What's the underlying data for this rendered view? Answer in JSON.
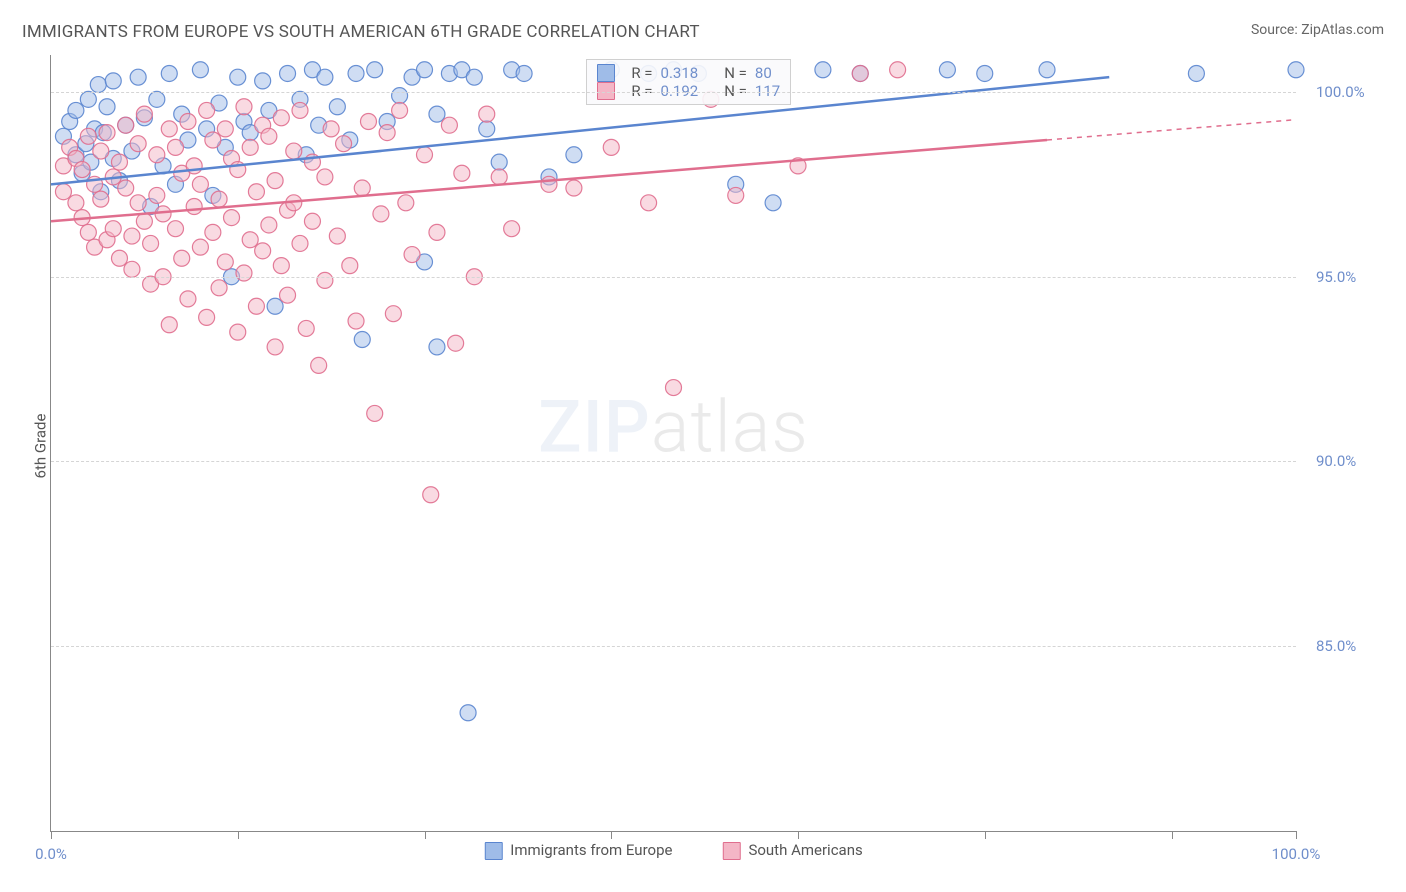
{
  "title": "IMMIGRANTS FROM EUROPE VS SOUTH AMERICAN 6TH GRADE CORRELATION CHART",
  "source_label": "Source: ",
  "source_name": "ZipAtlas.com",
  "ylabel": "6th Grade",
  "watermark_bold": "ZIP",
  "watermark_rest": "atlas",
  "chart": {
    "type": "scatter",
    "background_color": "#ffffff",
    "grid_color": "#d5d5d5",
    "axis_color": "#888888",
    "tick_label_color": "#6f8ecb",
    "xlim": [
      0,
      100
    ],
    "ylim": [
      80,
      101
    ],
    "xticks": [
      0,
      15,
      30,
      45,
      60,
      75,
      90,
      100
    ],
    "xtick_labels": {
      "0": "0.0%",
      "100": "100.0%"
    },
    "yticks": [
      85,
      90,
      95,
      100
    ],
    "ytick_labels": {
      "85": "85.0%",
      "90": "90.0%",
      "95": "95.0%",
      "100": "100.0%"
    },
    "marker_radius": 8,
    "marker_opacity": 0.5,
    "marker_stroke_opacity": 0.9,
    "line_width": 2.5,
    "legend": {
      "items": [
        {
          "label": "Immigrants from Europe",
          "fill": "#9fbce8",
          "stroke": "#5a85cf"
        },
        {
          "label": "South Americans",
          "fill": "#f4b6c6",
          "stroke": "#e06e8e"
        }
      ]
    },
    "stats_box": {
      "left_pct": 43,
      "top_pct": 0.5,
      "rows": [
        {
          "fill": "#9fbce8",
          "stroke": "#5a85cf",
          "r_label": "R =",
          "r": "0.318",
          "n_label": "N =",
          "n": "80"
        },
        {
          "fill": "#f4b6c6",
          "stroke": "#e06e8e",
          "r_label": "R =",
          "r": "0.192",
          "n_label": "N =",
          "n": "117"
        }
      ]
    },
    "series": [
      {
        "name": "Immigrants from Europe",
        "fill": "#9fbce8",
        "stroke": "#5a85cf",
        "trend": {
          "x0": 0,
          "y0": 97.5,
          "x1": 85,
          "y1": 100.4,
          "dashed_from": null
        },
        "points": [
          [
            1,
            98.8
          ],
          [
            1.5,
            99.2
          ],
          [
            2,
            98.3
          ],
          [
            2,
            99.5
          ],
          [
            2.5,
            97.8
          ],
          [
            2.8,
            98.6
          ],
          [
            3,
            99.8
          ],
          [
            3.2,
            98.1
          ],
          [
            3.5,
            99.0
          ],
          [
            3.8,
            100.2
          ],
          [
            4,
            97.3
          ],
          [
            4.2,
            98.9
          ],
          [
            4.5,
            99.6
          ],
          [
            5,
            98.2
          ],
          [
            5,
            100.3
          ],
          [
            5.5,
            97.6
          ],
          [
            6,
            99.1
          ],
          [
            6.5,
            98.4
          ],
          [
            7,
            100.4
          ],
          [
            7.5,
            99.3
          ],
          [
            8,
            96.9
          ],
          [
            8.5,
            99.8
          ],
          [
            9,
            98.0
          ],
          [
            9.5,
            100.5
          ],
          [
            10,
            97.5
          ],
          [
            10.5,
            99.4
          ],
          [
            11,
            98.7
          ],
          [
            12,
            100.6
          ],
          [
            12.5,
            99.0
          ],
          [
            13,
            97.2
          ],
          [
            13.5,
            99.7
          ],
          [
            14,
            98.5
          ],
          [
            14.5,
            95.0
          ],
          [
            15,
            100.4
          ],
          [
            15.5,
            99.2
          ],
          [
            16,
            98.9
          ],
          [
            17,
            100.3
          ],
          [
            17.5,
            99.5
          ],
          [
            18,
            94.2
          ],
          [
            19,
            100.5
          ],
          [
            20,
            99.8
          ],
          [
            20.5,
            98.3
          ],
          [
            21,
            100.6
          ],
          [
            21.5,
            99.1
          ],
          [
            22,
            100.4
          ],
          [
            23,
            99.6
          ],
          [
            24,
            98.7
          ],
          [
            24.5,
            100.5
          ],
          [
            25,
            93.3
          ],
          [
            26,
            100.6
          ],
          [
            27,
            99.2
          ],
          [
            28,
            99.9
          ],
          [
            29,
            100.4
          ],
          [
            30,
            95.4
          ],
          [
            30,
            100.6
          ],
          [
            31,
            99.4
          ],
          [
            31,
            93.1
          ],
          [
            32,
            100.5
          ],
          [
            33,
            100.6
          ],
          [
            33.5,
            83.2
          ],
          [
            34,
            100.4
          ],
          [
            35,
            99.0
          ],
          [
            36,
            98.1
          ],
          [
            37,
            100.6
          ],
          [
            38,
            100.5
          ],
          [
            40,
            97.7
          ],
          [
            42,
            98.3
          ],
          [
            45,
            100.6
          ],
          [
            48,
            100.5
          ],
          [
            50,
            100.6
          ],
          [
            52,
            100.5
          ],
          [
            55,
            97.5
          ],
          [
            58,
            97.0
          ],
          [
            62,
            100.6
          ],
          [
            65,
            100.5
          ],
          [
            72,
            100.6
          ],
          [
            75,
            100.5
          ],
          [
            80,
            100.6
          ],
          [
            92,
            100.5
          ],
          [
            100,
            100.6
          ]
        ]
      },
      {
        "name": "South Americans",
        "fill": "#f4b6c6",
        "stroke": "#e06e8e",
        "trend": {
          "x0": 0,
          "y0": 96.5,
          "x1": 80,
          "y1": 98.7,
          "dashed_from": 80,
          "x2": 100,
          "y2": 99.25
        },
        "points": [
          [
            1,
            98.0
          ],
          [
            1,
            97.3
          ],
          [
            1.5,
            98.5
          ],
          [
            2,
            97.0
          ],
          [
            2,
            98.2
          ],
          [
            2.5,
            96.6
          ],
          [
            2.5,
            97.9
          ],
          [
            3,
            98.8
          ],
          [
            3,
            96.2
          ],
          [
            3.5,
            97.5
          ],
          [
            3.5,
            95.8
          ],
          [
            4,
            98.4
          ],
          [
            4,
            97.1
          ],
          [
            4.5,
            96.0
          ],
          [
            4.5,
            98.9
          ],
          [
            5,
            97.7
          ],
          [
            5,
            96.3
          ],
          [
            5.5,
            95.5
          ],
          [
            5.5,
            98.1
          ],
          [
            6,
            99.1
          ],
          [
            6,
            97.4
          ],
          [
            6.5,
            96.1
          ],
          [
            6.5,
            95.2
          ],
          [
            7,
            98.6
          ],
          [
            7,
            97.0
          ],
          [
            7.5,
            99.4
          ],
          [
            7.5,
            96.5
          ],
          [
            8,
            94.8
          ],
          [
            8,
            95.9
          ],
          [
            8.5,
            98.3
          ],
          [
            8.5,
            97.2
          ],
          [
            9,
            96.7
          ],
          [
            9,
            95.0
          ],
          [
            9.5,
            99.0
          ],
          [
            9.5,
            93.7
          ],
          [
            10,
            98.5
          ],
          [
            10,
            96.3
          ],
          [
            10.5,
            97.8
          ],
          [
            10.5,
            95.5
          ],
          [
            11,
            99.2
          ],
          [
            11,
            94.4
          ],
          [
            11.5,
            96.9
          ],
          [
            11.5,
            98.0
          ],
          [
            12,
            95.8
          ],
          [
            12,
            97.5
          ],
          [
            12.5,
            99.5
          ],
          [
            12.5,
            93.9
          ],
          [
            13,
            96.2
          ],
          [
            13,
            98.7
          ],
          [
            13.5,
            97.1
          ],
          [
            13.5,
            94.7
          ],
          [
            14,
            95.4
          ],
          [
            14,
            99.0
          ],
          [
            14.5,
            96.6
          ],
          [
            14.5,
            98.2
          ],
          [
            15,
            93.5
          ],
          [
            15,
            97.9
          ],
          [
            15.5,
            95.1
          ],
          [
            15.5,
            99.6
          ],
          [
            16,
            96.0
          ],
          [
            16,
            98.5
          ],
          [
            16.5,
            94.2
          ],
          [
            16.5,
            97.3
          ],
          [
            17,
            95.7
          ],
          [
            17,
            99.1
          ],
          [
            17.5,
            98.8
          ],
          [
            17.5,
            96.4
          ],
          [
            18,
            93.1
          ],
          [
            18,
            97.6
          ],
          [
            18.5,
            95.3
          ],
          [
            18.5,
            99.3
          ],
          [
            19,
            96.8
          ],
          [
            19,
            94.5
          ],
          [
            19.5,
            98.4
          ],
          [
            19.5,
            97.0
          ],
          [
            20,
            95.9
          ],
          [
            20,
            99.5
          ],
          [
            20.5,
            93.6
          ],
          [
            21,
            96.5
          ],
          [
            21,
            98.1
          ],
          [
            21.5,
            92.6
          ],
          [
            22,
            97.7
          ],
          [
            22,
            94.9
          ],
          [
            22.5,
            99.0
          ],
          [
            23,
            96.1
          ],
          [
            23.5,
            98.6
          ],
          [
            24,
            95.3
          ],
          [
            24.5,
            93.8
          ],
          [
            25,
            97.4
          ],
          [
            25.5,
            99.2
          ],
          [
            26,
            91.3
          ],
          [
            26.5,
            96.7
          ],
          [
            27,
            98.9
          ],
          [
            27.5,
            94.0
          ],
          [
            28,
            99.5
          ],
          [
            28.5,
            97.0
          ],
          [
            29,
            95.6
          ],
          [
            30,
            98.3
          ],
          [
            30.5,
            89.1
          ],
          [
            31,
            96.2
          ],
          [
            32,
            99.1
          ],
          [
            32.5,
            93.2
          ],
          [
            33,
            97.8
          ],
          [
            34,
            95.0
          ],
          [
            35,
            99.4
          ],
          [
            36,
            97.7
          ],
          [
            37,
            96.3
          ],
          [
            40,
            97.5
          ],
          [
            42,
            97.4
          ],
          [
            45,
            98.5
          ],
          [
            48,
            97.0
          ],
          [
            50,
            92.0
          ],
          [
            53,
            99.8
          ],
          [
            55,
            97.2
          ],
          [
            60,
            98.0
          ],
          [
            65,
            100.5
          ],
          [
            68,
            100.6
          ]
        ]
      }
    ]
  }
}
